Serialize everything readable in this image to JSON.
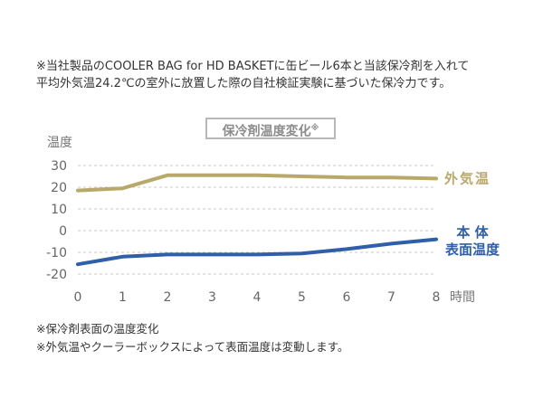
{
  "notes": {
    "top_line1": "※当社製品のCOOLER BAG for HD BASKETに缶ビール6本と当該保冷剤を入れて",
    "top_line2": "平均外気温24.2℃の室外に放置した際の自社検証実験に基づいた保冷力です。",
    "bottom_line1": "※保冷剤表面の温度変化",
    "bottom_line2": "※外気温やクーラーボックスによって表面温度は変動します。"
  },
  "chart_data": {
    "type": "line",
    "title": "保冷剤温度変化",
    "title_mark": "※",
    "ylabel": "温度",
    "xlabel": "時間",
    "x": [
      0,
      1,
      2,
      3,
      4,
      5,
      6,
      7,
      8
    ],
    "xlim": [
      0,
      8
    ],
    "ylim": [
      -20,
      30
    ],
    "yticks": [
      30,
      20,
      10,
      0,
      -10,
      -20
    ],
    "ytick_labels": [
      "30",
      "20",
      "10",
      "0",
      "-10",
      "-20"
    ],
    "grid": "horizontal dashed",
    "series": [
      {
        "name": "外気温",
        "color": "#b8a86a",
        "values": [
          18.5,
          19.5,
          25.5,
          25.5,
          25.5,
          25,
          24.5,
          24.5,
          24
        ]
      },
      {
        "name": "本体表面温度",
        "name_lines": [
          "本 体",
          "表面温度"
        ],
        "color": "#2e5fa8",
        "values": [
          -15.5,
          -12,
          -11,
          -11,
          -11,
          -10.5,
          -8.5,
          -6,
          -4
        ]
      }
    ]
  }
}
